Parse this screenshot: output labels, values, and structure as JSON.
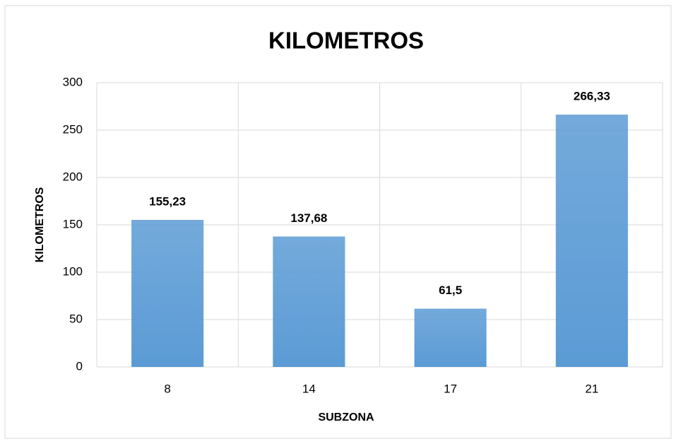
{
  "chart_data": {
    "type": "bar",
    "title": "KILOMETROS",
    "x_label": "SUBZONA",
    "y_label": "KILOMETROS",
    "categories": [
      "8",
      "14",
      "17",
      "21"
    ],
    "values": [
      155.23,
      137.68,
      61.5,
      266.33
    ],
    "value_labels": [
      "155,23",
      "137,68",
      "61,5",
      "266,33"
    ],
    "color": "#5b9bd5",
    "ylim": [
      0,
      300
    ],
    "yticks": [
      0,
      50,
      100,
      150,
      200,
      250,
      300
    ],
    "grid": true
  }
}
